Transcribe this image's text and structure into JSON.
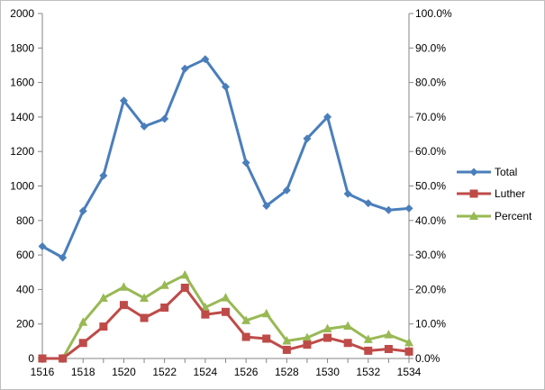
{
  "chart_data": {
    "type": "line",
    "title": "",
    "x": [
      1516,
      1517,
      1518,
      1519,
      1520,
      1521,
      1522,
      1523,
      1524,
      1525,
      1526,
      1527,
      1528,
      1529,
      1530,
      1531,
      1532,
      1533,
      1534
    ],
    "x_tick_labels": [
      "1516",
      "1518",
      "1520",
      "1522",
      "1524",
      "1526",
      "1528",
      "1530",
      "1532",
      "1534"
    ],
    "y_left_ticks": [
      "0",
      "200",
      "400",
      "600",
      "800",
      "1000",
      "1200",
      "1400",
      "1600",
      "1800",
      "2000"
    ],
    "y_right_ticks": [
      "0.0%",
      "10.0%",
      "20.0%",
      "30.0%",
      "40.0%",
      "50.0%",
      "60.0%",
      "70.0%",
      "80.0%",
      "90.0%",
      "100.0%"
    ],
    "ylim_left": [
      0,
      2000
    ],
    "ylim_right": [
      0,
      100
    ],
    "grid": false,
    "legend_position": "right",
    "series": [
      {
        "name": "Total",
        "axis": "left",
        "color": "#4a7ebb",
        "marker": "diamond",
        "values": [
          650,
          585,
          855,
          1060,
          1495,
          1345,
          1390,
          1680,
          1735,
          1575,
          1135,
          885,
          975,
          1275,
          1400,
          955,
          900,
          860,
          870
        ]
      },
      {
        "name": "Luther",
        "axis": "left",
        "color": "#be4b48",
        "marker": "square",
        "values": [
          0,
          0,
          90,
          185,
          310,
          235,
          295,
          410,
          255,
          270,
          125,
          115,
          50,
          80,
          120,
          90,
          45,
          55,
          40
        ]
      },
      {
        "name": "Percent",
        "axis": "right",
        "color": "#98b954",
        "marker": "triangle",
        "values": [
          0.0,
          0.0,
          10.5,
          17.5,
          20.7,
          17.5,
          21.2,
          24.2,
          14.8,
          17.6,
          11.0,
          13.0,
          5.1,
          6.0,
          8.6,
          9.4,
          5.5,
          6.9,
          4.6
        ]
      }
    ]
  }
}
